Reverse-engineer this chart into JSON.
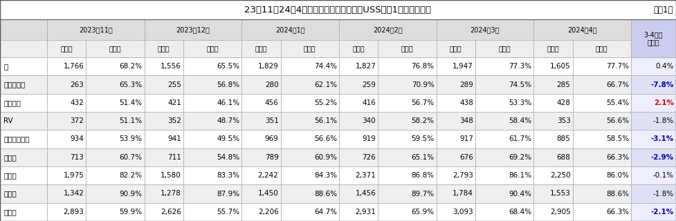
{
  "title": "23年11～24年4月カテゴリー別の変動（USS東京1開催当たり）",
  "title_right": "【表1】",
  "col_months": [
    "2023年11月",
    "2023年12月",
    "2024年1月",
    "2024年2月",
    "2024年3月",
    "2024年4月"
  ],
  "col_sub": [
    "出品数",
    "成約率"
  ],
  "last_col_top": "3-4月比",
  "last_col_sub": "成約率",
  "row_labels": [
    "軽",
    "コンパクト",
    "ミニバン",
    "RV",
    "ハイブリッド",
    "商用車",
    "初出品",
    "低価格",
    "輸入車"
  ],
  "data": [
    [
      "1,766",
      "68.2%",
      "1,556",
      "65.5%",
      "1,829",
      "74.4%",
      "1,827",
      "76.8%",
      "1,947",
      "77.3%",
      "1,605",
      "77.7%",
      "0.4%"
    ],
    [
      "263",
      "65.3%",
      "255",
      "56.8%",
      "280",
      "62.1%",
      "259",
      "70.9%",
      "289",
      "74.5%",
      "285",
      "66.7%",
      "-7.8%"
    ],
    [
      "432",
      "51.4%",
      "421",
      "46.1%",
      "456",
      "55.2%",
      "416",
      "56.7%",
      "438",
      "53.3%",
      "428",
      "55.4%",
      "2.1%"
    ],
    [
      "372",
      "51.1%",
      "352",
      "48.7%",
      "351",
      "56.1%",
      "340",
      "58.2%",
      "348",
      "58.4%",
      "353",
      "56.6%",
      "-1.8%"
    ],
    [
      "934",
      "53.9%",
      "941",
      "49.5%",
      "969",
      "56.6%",
      "919",
      "59.5%",
      "917",
      "61.7%",
      "885",
      "58.5%",
      "-3.1%"
    ],
    [
      "713",
      "60.7%",
      "711",
      "54.8%",
      "789",
      "60.9%",
      "726",
      "65.1%",
      "676",
      "69.2%",
      "688",
      "66.3%",
      "-2.9%"
    ],
    [
      "1,975",
      "82.2%",
      "1,580",
      "83.3%",
      "2,242",
      "84.3%",
      "2,371",
      "86.8%",
      "2,793",
      "86.1%",
      "2,250",
      "86.0%",
      "-0.1%"
    ],
    [
      "1,342",
      "90.9%",
      "1,278",
      "87.9%",
      "1,450",
      "88.6%",
      "1,456",
      "89.7%",
      "1,784",
      "90.4%",
      "1,553",
      "88.6%",
      "-1.8%"
    ],
    [
      "2,893",
      "59.9%",
      "2,626",
      "55.7%",
      "2,206",
      "64.7%",
      "2,931",
      "65.9%",
      "3,093",
      "68.4%",
      "2,905",
      "66.3%",
      "-2.1%"
    ]
  ],
  "last_col_colors": [
    "#000000",
    "#0000bb",
    "#dd0000",
    "#000000",
    "#0000bb",
    "#0000bb",
    "#000000",
    "#000000",
    "#0000bb"
  ],
  "last_col_bold": [
    false,
    true,
    true,
    false,
    true,
    true,
    false,
    false,
    true
  ],
  "bg_title": "#ffffff",
  "bg_header_month": "#dddddd",
  "bg_header_sub": "#eeeeee",
  "bg_row_odd": "#ffffff",
  "bg_row_even": "#efefef",
  "bg_last_col_header": "#ccccee",
  "bg_last_col_data_odd": "#eeeeff",
  "bg_last_col_data_even": "#e0e0f4",
  "border_color": "#aaaaaa",
  "font_size_title": 9.5,
  "font_size_header": 7,
  "font_size_data": 7.5
}
